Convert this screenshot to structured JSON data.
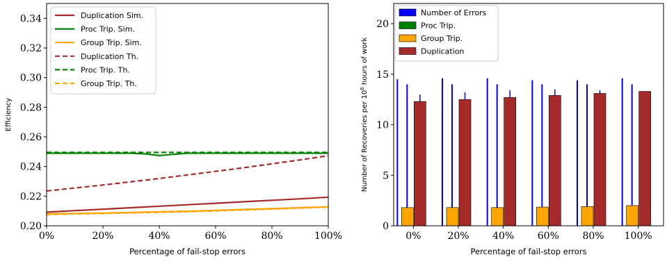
{
  "chart_data": [
    {
      "type": "line",
      "xlabel": "Percentage of fail-stop errors",
      "ylabel": "Efficiency",
      "x": [
        0,
        10,
        20,
        30,
        35,
        40,
        45,
        50,
        60,
        70,
        80,
        90,
        100
      ],
      "xticks": [
        0,
        20,
        40,
        60,
        80,
        100
      ],
      "xtick_labels": [
        "0%",
        "20%",
        "40%",
        "60%",
        "80%",
        "100%"
      ],
      "yticks": [
        0.2,
        0.22,
        0.24,
        0.26,
        0.28,
        0.3,
        0.32,
        0.34
      ],
      "ytick_labels": [
        "0.20",
        "0.22",
        "0.24",
        "0.26",
        "0.28",
        "0.30",
        "0.32",
        "0.34"
      ],
      "xlim": [
        0,
        100
      ],
      "ylim": [
        0.2,
        0.35
      ],
      "legend_position": "top-left",
      "series": [
        {
          "name": "Duplication Sim.",
          "color": "#a52a2a",
          "dash": "solid",
          "values": [
            0.2092,
            0.2102,
            0.2112,
            0.2122,
            0.2127,
            0.2132,
            0.2137,
            0.2142,
            0.2152,
            0.2162,
            0.2172,
            0.2182,
            0.2193
          ]
        },
        {
          "name": "Proc Trip. Sim.",
          "color": "#008000",
          "dash": "solid",
          "values": [
            0.249,
            0.249,
            0.249,
            0.249,
            0.2485,
            0.2474,
            0.2482,
            0.249,
            0.249,
            0.249,
            0.249,
            0.249,
            0.249
          ]
        },
        {
          "name": "Group Trip. Sim.",
          "color": "#ffa500",
          "dash": "solid",
          "values": [
            0.208,
            0.2083,
            0.2086,
            0.209,
            0.2092,
            0.2094,
            0.2096,
            0.2098,
            0.2104,
            0.211,
            0.2116,
            0.2122,
            0.2128
          ]
        },
        {
          "name": "Duplication Th.",
          "color": "#a52a2a",
          "dash": "dashed",
          "values": [
            0.2235,
            0.2255,
            0.2275,
            0.2297,
            0.2308,
            0.2319,
            0.2331,
            0.2343,
            0.2367,
            0.2392,
            0.2418,
            0.2445,
            0.2473
          ]
        },
        {
          "name": "Proc Trip. Th.",
          "color": "#008000",
          "dash": "dashed",
          "values": [
            0.2495,
            0.2495,
            0.2495,
            0.2495,
            0.2495,
            0.2495,
            0.2495,
            0.2495,
            0.2495,
            0.2495,
            0.2495,
            0.2495,
            0.2495
          ]
        },
        {
          "name": "Group Trip. Th.",
          "color": "#ffa500",
          "dash": "dashed",
          "values": [
            0.2076,
            0.208,
            0.2083,
            0.2087,
            0.2089,
            0.2091,
            0.2093,
            0.2095,
            0.2101,
            0.2107,
            0.2113,
            0.212,
            0.2127
          ]
        }
      ]
    },
    {
      "type": "bar",
      "xlabel": "Percentage of fail-stop errors",
      "ylabel_prefix": "Number of Recoveries per 10",
      "ylabel_exp": "6",
      "ylabel_suffix": " hours of work",
      "categories": [
        "0%",
        "20%",
        "40%",
        "60%",
        "80%",
        "100%"
      ],
      "yticks": [
        0,
        5,
        10,
        15,
        20
      ],
      "ytick_labels": [
        "0",
        "5",
        "10",
        "15",
        "20"
      ],
      "ylim": [
        0,
        22
      ],
      "legend_position": "top-left",
      "series": [
        {
          "name": "Number of Errors",
          "color": "#0000ff",
          "values": [
            14.5,
            14.6,
            14.6,
            14.4,
            14.4,
            14.6
          ],
          "sub_values": [
            14.0,
            14.0,
            14.0,
            14.0,
            14.0,
            14.0
          ]
        },
        {
          "name": "Proc Trip.",
          "color": "#008000",
          "values": [
            0,
            0,
            0,
            0,
            0,
            0
          ]
        },
        {
          "name": "Group Trip.",
          "color": "#ffa500",
          "values": [
            1.8,
            1.8,
            1.8,
            1.85,
            1.9,
            2.0
          ]
        },
        {
          "name": "Duplication",
          "color": "#a52a2a",
          "values": [
            12.3,
            12.5,
            12.7,
            12.9,
            13.1,
            13.3
          ],
          "err_top": [
            13.0,
            13.2,
            13.4,
            13.5,
            13.4,
            13.3
          ]
        }
      ]
    }
  ]
}
